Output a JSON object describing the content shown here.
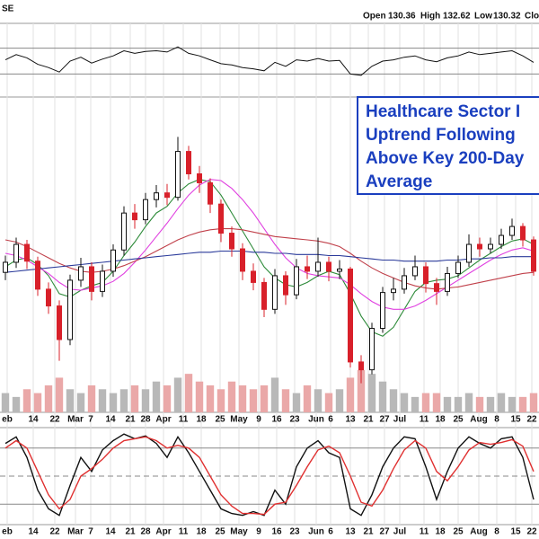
{
  "chart_data": {
    "type": "candlestick",
    "header": {
      "symbol": "SE",
      "open_label": "Open",
      "open": 130.36,
      "high_label": "High",
      "high": 132.62,
      "low_label": "Low",
      "low": 130.32,
      "close_label": "Clos"
    },
    "annotation": [
      "Healthcare Sector I",
      "Uptrend Following",
      "Above Key 200-Day",
      "Average"
    ],
    "x_labels": [
      "eb",
      "14",
      "22",
      "Mar",
      "7",
      "14",
      "21",
      "28",
      "Apr",
      "11",
      "18",
      "25",
      "May",
      "9",
      "16",
      "23",
      "Jun",
      "6",
      "13",
      "21",
      "27",
      "Jul",
      "11",
      "18",
      "25",
      "Aug",
      "8",
      "15",
      "22"
    ],
    "ylim": [
      118,
      146
    ],
    "open": [
      130.5,
      131.4,
      133.0,
      131.5,
      129.0,
      127.5,
      124.5,
      129.8,
      131.0,
      128.8,
      130.6,
      132.5,
      135.8,
      135.2,
      137.0,
      137.6,
      137.2,
      141.3,
      139.3,
      138.5,
      136.6,
      134.0,
      132.6,
      130.6,
      129.6,
      127.2,
      130.2,
      128.5,
      131.0,
      130.6,
      131.4,
      130.6,
      130.8,
      122.5,
      121.8,
      125.5,
      128.7,
      129.0,
      130.2,
      131.0,
      129.5,
      128.8,
      130.4,
      131.4,
      133.0,
      132.6,
      133.0,
      133.8,
      134.6,
      133.4
    ],
    "high": [
      132.0,
      133.6,
      133.4,
      131.9,
      129.6,
      128.0,
      130.3,
      131.8,
      131.4,
      131.2,
      133.0,
      136.4,
      136.6,
      137.6,
      138.3,
      138.4,
      142.6,
      141.8,
      140.0,
      138.9,
      137.0,
      134.6,
      133.1,
      131.3,
      130.0,
      130.8,
      130.6,
      131.7,
      132.0,
      133.6,
      131.9,
      131.6,
      131.0,
      123.1,
      126.0,
      129.2,
      130.0,
      130.9,
      132.0,
      131.4,
      130.0,
      131.0,
      132.0,
      133.9,
      133.6,
      133.6,
      134.4,
      135.3,
      134.9,
      133.7
    ],
    "low": [
      129.8,
      130.9,
      130.8,
      128.4,
      126.8,
      122.6,
      124.0,
      129.2,
      128.0,
      128.3,
      130.1,
      132.0,
      134.4,
      134.8,
      136.3,
      136.5,
      136.9,
      138.8,
      137.6,
      135.8,
      133.2,
      131.9,
      129.8,
      128.9,
      126.5,
      126.8,
      127.6,
      128.1,
      129.9,
      130.1,
      129.7,
      129.9,
      122.0,
      120.6,
      121.4,
      125.1,
      128.0,
      128.6,
      129.8,
      128.7,
      127.6,
      128.4,
      130.0,
      131.0,
      131.9,
      132.2,
      132.6,
      133.4,
      132.8,
      130.2
    ],
    "close": [
      131.4,
      133.0,
      131.5,
      129.0,
      127.5,
      124.5,
      129.8,
      131.0,
      128.8,
      130.6,
      132.5,
      135.8,
      135.2,
      137.0,
      137.6,
      137.2,
      141.3,
      139.3,
      138.5,
      136.6,
      134.0,
      132.6,
      130.6,
      129.6,
      127.2,
      130.2,
      128.5,
      131.0,
      130.6,
      131.4,
      130.6,
      130.8,
      122.5,
      121.8,
      125.5,
      128.7,
      129.0,
      130.2,
      131.0,
      129.5,
      128.8,
      130.4,
      131.4,
      133.0,
      132.6,
      133.0,
      133.8,
      134.6,
      133.4,
      130.6
    ],
    "moving_averages": [
      {
        "color": "#2e8b3a",
        "values": [
          131.0,
          131.6,
          131.8,
          131.2,
          130.2,
          128.6,
          128.3,
          128.9,
          129.3,
          129.6,
          130.6,
          132.0,
          133.2,
          134.6,
          135.8,
          136.4,
          137.6,
          138.4,
          138.8,
          138.6,
          137.4,
          135.8,
          134.2,
          132.6,
          131.0,
          130.0,
          129.4,
          129.2,
          129.6,
          130.2,
          130.6,
          130.3,
          128.6,
          126.6,
          125.2,
          124.8,
          125.6,
          127.2,
          128.8,
          129.6,
          129.8,
          129.9,
          130.2,
          130.9,
          131.6,
          132.2,
          132.8,
          133.3,
          133.5,
          133.0
        ]
      },
      {
        "color": "#e040e0",
        "values": [
          132.2,
          132.0,
          131.6,
          131.0,
          130.4,
          129.6,
          129.0,
          128.9,
          129.1,
          129.3,
          129.7,
          130.4,
          131.4,
          132.5,
          133.7,
          134.9,
          136.2,
          137.4,
          138.3,
          138.8,
          138.7,
          138.0,
          137.0,
          135.8,
          134.4,
          133.0,
          131.8,
          130.9,
          130.4,
          130.2,
          130.1,
          130.0,
          129.4,
          128.6,
          127.9,
          127.4,
          127.2,
          127.2,
          127.5,
          128.0,
          128.6,
          129.2,
          129.8,
          130.4,
          131.0,
          131.6,
          132.1,
          132.5,
          132.7,
          132.4
        ]
      },
      {
        "color": "#c0404a",
        "values": [
          133.4,
          133.2,
          132.8,
          132.3,
          131.8,
          131.3,
          130.9,
          130.6,
          130.5,
          130.6,
          130.8,
          131.1,
          131.5,
          131.9,
          132.4,
          132.9,
          133.4,
          133.8,
          134.1,
          134.3,
          134.4,
          134.4,
          134.3,
          134.1,
          133.9,
          133.7,
          133.6,
          133.5,
          133.4,
          133.3,
          133.1,
          132.8,
          132.2,
          131.5,
          130.9,
          130.4,
          130.0,
          129.6,
          129.3,
          129.1,
          129.0,
          129.1,
          129.2,
          129.4,
          129.6,
          129.8,
          130.0,
          130.2,
          130.4,
          130.5
        ]
      },
      {
        "color": "#2a3a9a",
        "values": [
          130.5,
          130.6,
          130.7,
          130.8,
          130.9,
          131.0,
          131.1,
          131.2,
          131.3,
          131.4,
          131.5,
          131.6,
          131.7,
          131.8,
          131.9,
          132.0,
          132.1,
          132.2,
          132.3,
          132.3,
          132.4,
          132.4,
          132.4,
          132.3,
          132.3,
          132.2,
          132.2,
          132.1,
          132.1,
          132.1,
          132.0,
          132.0,
          131.9,
          131.8,
          131.7,
          131.6,
          131.6,
          131.5,
          131.5,
          131.5,
          131.5,
          131.6,
          131.6,
          131.7,
          131.7,
          131.8,
          131.8,
          131.9,
          131.9,
          131.9
        ]
      }
    ],
    "volume": {
      "ylim": [
        0,
        14
      ],
      "values": [
        5,
        4,
        6,
        5,
        7,
        9,
        6,
        5,
        7,
        6,
        5,
        6,
        7,
        6,
        8,
        7,
        9,
        10,
        8,
        7,
        6,
        8,
        7,
        6,
        7,
        9,
        6,
        5,
        7,
        6,
        5,
        6,
        9,
        11,
        10,
        8,
        6,
        5,
        4,
        5,
        5,
        4,
        4,
        5,
        4,
        4,
        5,
        4,
        4,
        5
      ]
    },
    "rsi": {
      "ylim": [
        0,
        100
      ],
      "levels": [
        70,
        30
      ],
      "color": "#111111",
      "values": [
        52,
        60,
        55,
        45,
        40,
        33,
        50,
        56,
        47,
        53,
        58,
        66,
        62,
        65,
        66,
        64,
        72,
        62,
        58,
        52,
        46,
        44,
        40,
        38,
        35,
        48,
        42,
        52,
        50,
        54,
        50,
        51,
        30,
        28,
        42,
        50,
        52,
        56,
        58,
        52,
        49,
        55,
        58,
        64,
        60,
        62,
        64,
        66,
        58,
        48
      ]
    },
    "stochastic": {
      "ylim": [
        0,
        100
      ],
      "levels": [
        80,
        50,
        20
      ],
      "series": [
        {
          "color": "#111111",
          "values": [
            85,
            92,
            70,
            35,
            15,
            8,
            40,
            70,
            55,
            78,
            88,
            95,
            90,
            93,
            85,
            70,
            92,
            75,
            55,
            35,
            15,
            10,
            8,
            12,
            8,
            35,
            20,
            60,
            80,
            88,
            75,
            70,
            15,
            8,
            30,
            60,
            80,
            92,
            90,
            60,
            25,
            55,
            80,
            92,
            85,
            80,
            90,
            92,
            70,
            25
          ]
        },
        {
          "color": "#e03030",
          "values": [
            80,
            88,
            80,
            55,
            30,
            15,
            25,
            50,
            58,
            68,
            80,
            88,
            90,
            92,
            88,
            80,
            83,
            80,
            70,
            50,
            30,
            18,
            10,
            10,
            9,
            20,
            22,
            40,
            60,
            78,
            82,
            75,
            50,
            22,
            18,
            35,
            58,
            78,
            88,
            80,
            55,
            45,
            60,
            78,
            86,
            84,
            86,
            89,
            82,
            55
          ]
        }
      ]
    }
  }
}
